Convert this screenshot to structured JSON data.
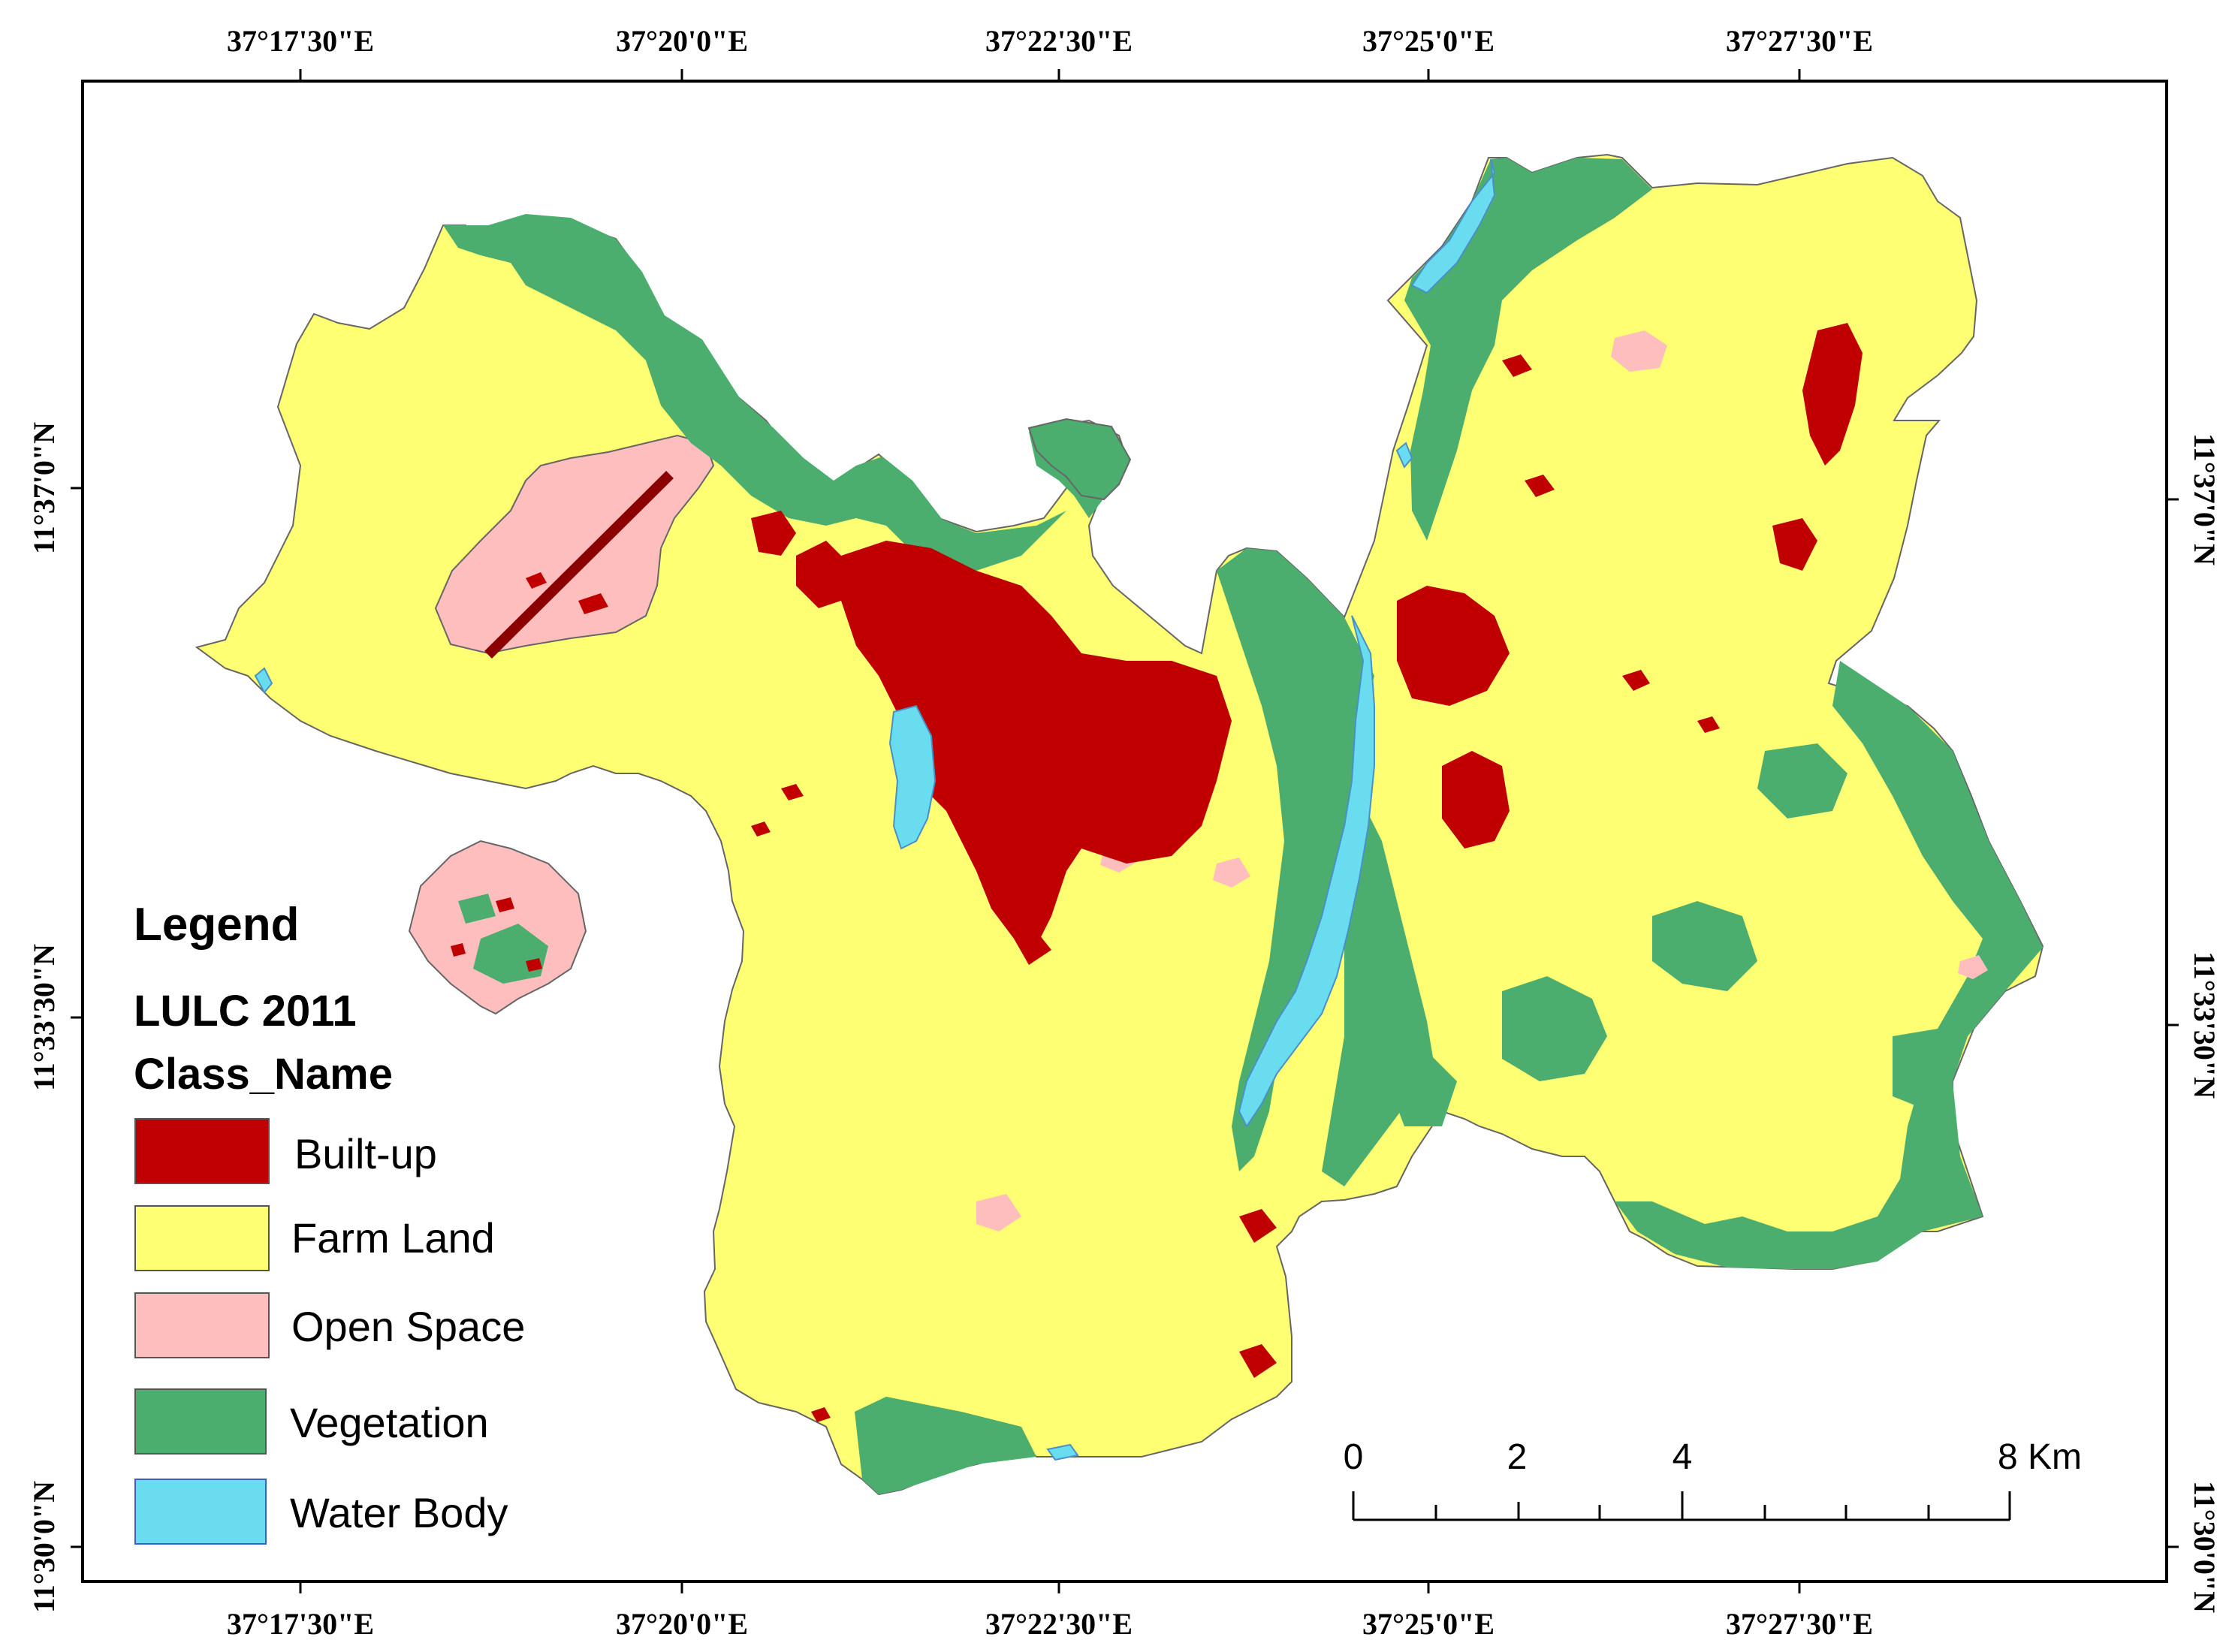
{
  "colors": {
    "built_up": "#c00000",
    "farm_land": "#ffff73",
    "open_space": "#ffbebe",
    "vegetation": "#4cae6e",
    "water_body": "#69dcf0",
    "outline": "#666666"
  },
  "axes": {
    "top_longitudes": [
      "37°17'30\"E",
      "37°20'0\"E",
      "37°22'30\"E",
      "37°25'0\"E",
      "37°27'30\"E"
    ],
    "bottom_longitudes": [
      "37°17'30\"E",
      "37°20'0\"E",
      "37°22'30\"E",
      "37°25'0\"E",
      "37°27'30\"E"
    ],
    "left_latitudes": [
      "11°37'0\"N",
      "11°33'30\"N",
      "11°30'0\"N"
    ],
    "right_latitudes": [
      "11°37'0\"N",
      "11°33'30\"N",
      "11°30'0\"N"
    ]
  },
  "legend": {
    "title": "Legend",
    "layer": "LULC 2011",
    "field": "Class_Name",
    "items": [
      {
        "label": "Built-up",
        "color": "#c00000"
      },
      {
        "label": "Farm Land",
        "color": "#ffff73"
      },
      {
        "label": "Open Space",
        "color": "#ffbebe"
      },
      {
        "label": "Vegetation",
        "color": "#4cae6e"
      },
      {
        "label": "Water Body",
        "color": "#69dcf0"
      }
    ]
  },
  "scale_bar": {
    "labels": [
      "0",
      "2",
      "4",
      "8 Km"
    ]
  }
}
